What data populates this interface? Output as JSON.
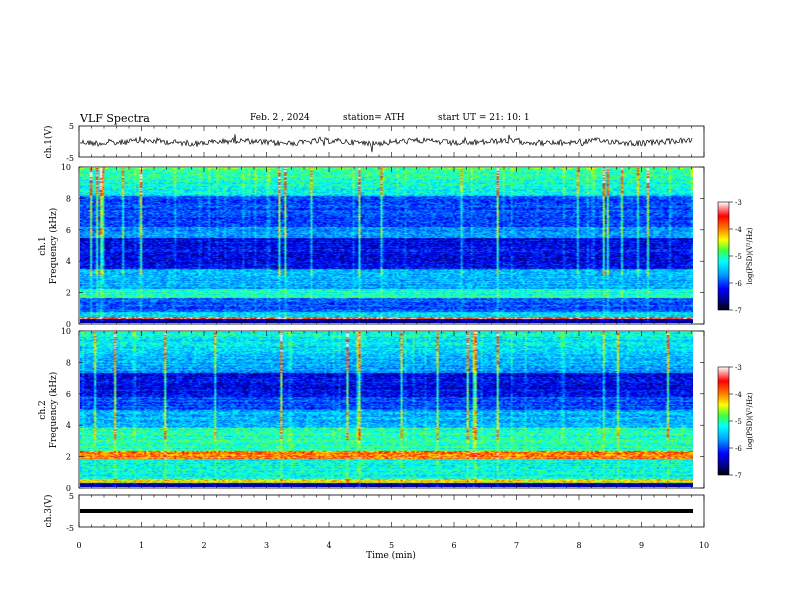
{
  "header": {
    "title": "VLF  Spectra",
    "date": "Feb. 2  , 2024",
    "station": "station= ATH",
    "start": "start  UT  =    21: 10: 1"
  },
  "chart_data": [
    {
      "type": "line",
      "name": "waveform-ch1",
      "ylabel": "ch.1(V)",
      "ylim": [
        -5,
        5
      ],
      "yticks": [
        "5",
        "-5"
      ],
      "xlim": [
        0,
        10
      ]
    },
    {
      "type": "heatmap",
      "name": "spectrogram-ch1",
      "ylabel": "ch.1\nFrequency  (kHz)",
      "ylabel_line1": "ch.1",
      "ylabel_line2": "Frequency  (kHz)",
      "ylim": [
        0,
        10
      ],
      "yticks": [
        "0",
        "2",
        "4",
        "6",
        "8",
        "10"
      ],
      "xlim": [
        0,
        10
      ],
      "colorbar": {
        "label": "log(PSD)(V²/Hz)",
        "range": [
          -7,
          -3
        ],
        "ticks": [
          "-3",
          "-4",
          "-5",
          "-6",
          "-7"
        ]
      }
    },
    {
      "type": "heatmap",
      "name": "spectrogram-ch2",
      "ylabel": "ch.2\nFrequency  (kHz)",
      "ylabel_line1": "ch.2",
      "ylabel_line2": "Frequency  (kHz)",
      "ylim": [
        0,
        10
      ],
      "yticks": [
        "0",
        "2",
        "4",
        "6",
        "8",
        "10"
      ],
      "xlim": [
        0,
        10
      ],
      "colorbar": {
        "label": "log(PSD)(V²/Hz)",
        "range": [
          -7,
          -3
        ],
        "ticks": [
          "-3",
          "-4",
          "-5",
          "-6",
          "-7"
        ]
      }
    },
    {
      "type": "line",
      "name": "waveform-ch3",
      "ylabel": "ch.3(V)",
      "ylim": [
        -5,
        5
      ],
      "yticks": [
        "5",
        "-5"
      ],
      "xlim": [
        0,
        10
      ],
      "xlabel": "Time  (min)",
      "xticks": [
        "0",
        "1",
        "2",
        "3",
        "4",
        "5",
        "6",
        "7",
        "8",
        "9",
        "10"
      ]
    }
  ],
  "colors": {
    "colormap": [
      "#00007f",
      "#0000ff",
      "#007fff",
      "#00ffff",
      "#7fff7f",
      "#ffff00",
      "#ff7f00",
      "#ff0000",
      "#ffffff"
    ]
  }
}
